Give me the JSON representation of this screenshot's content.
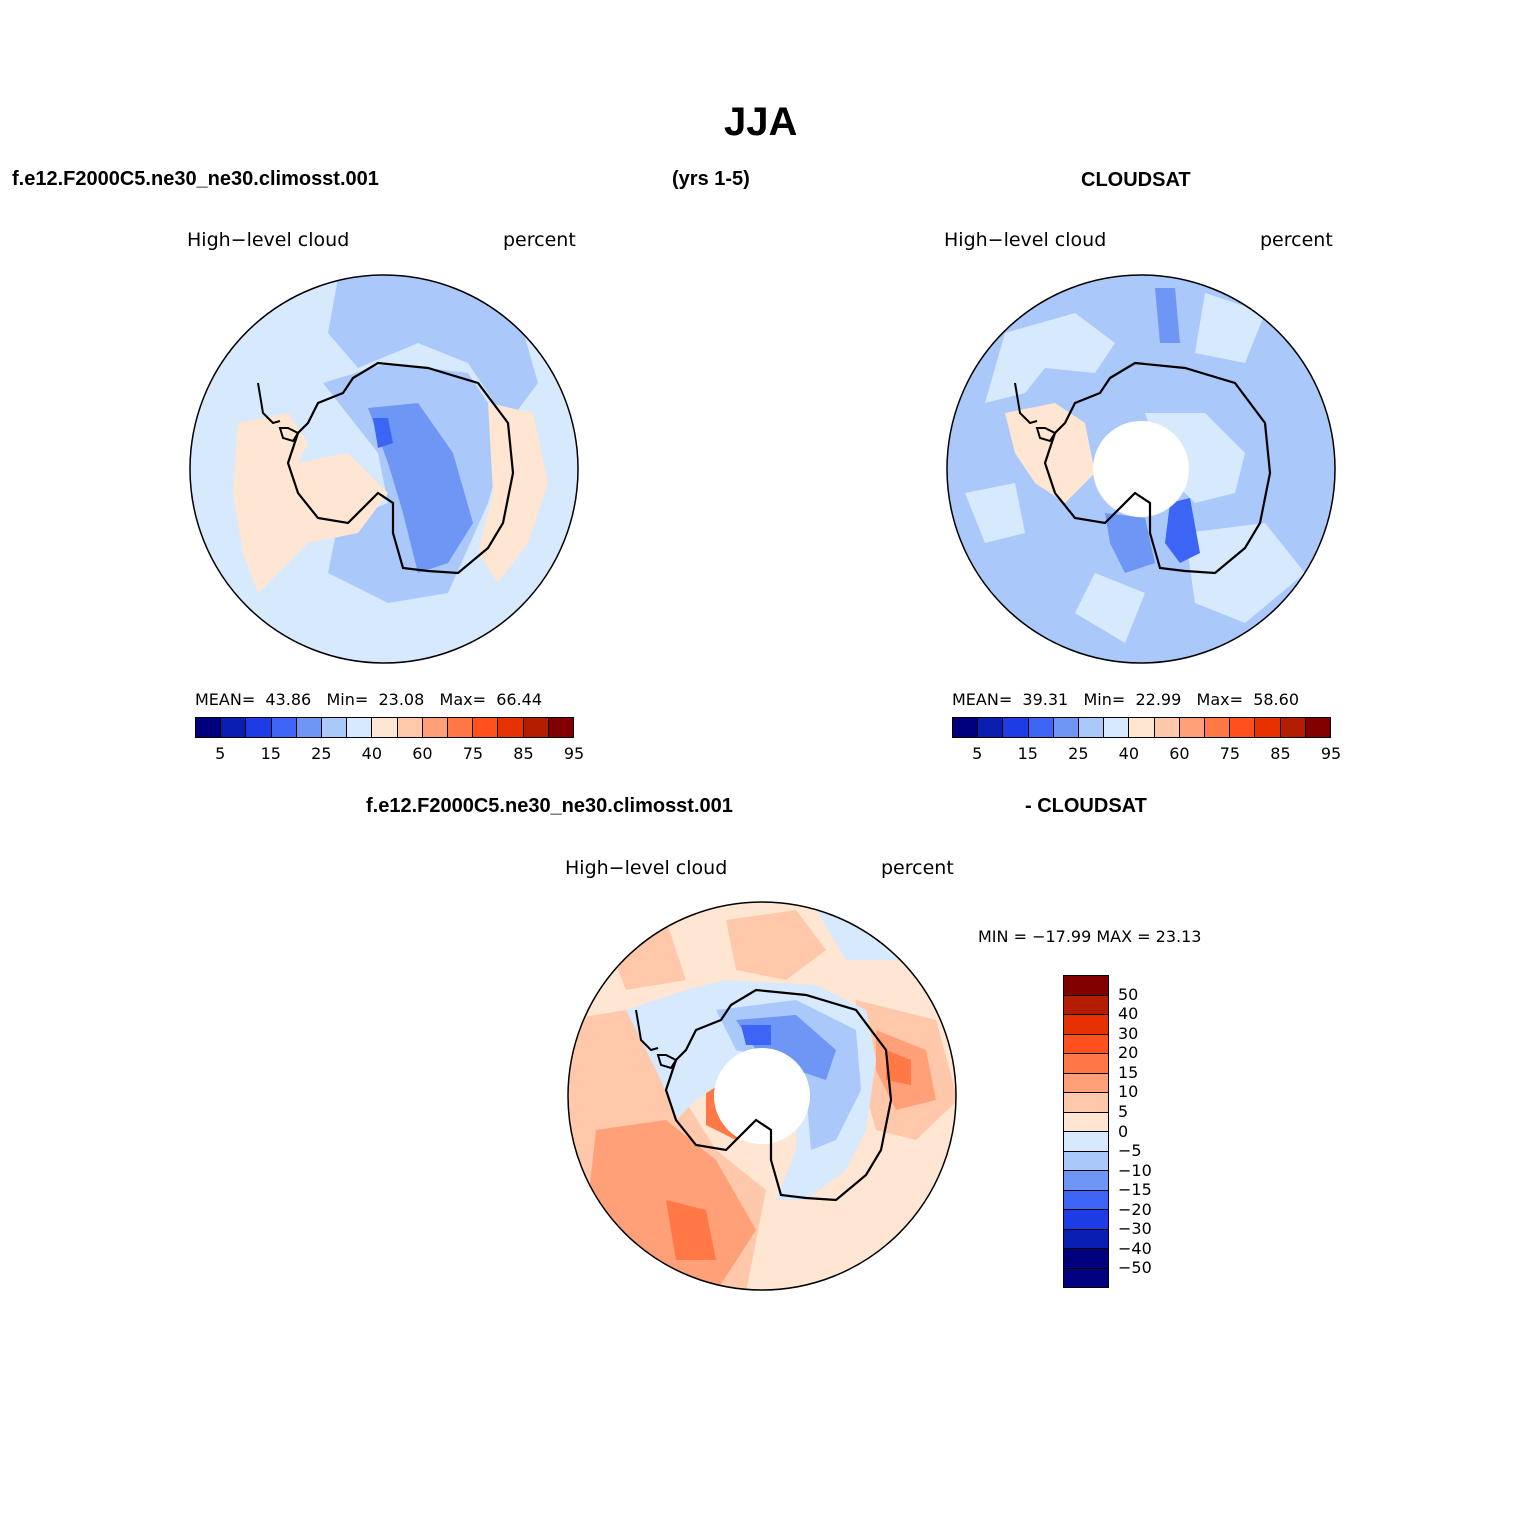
{
  "title": "JJA",
  "panel1": {
    "case_name": "f.e12.F2000C5.ne30_ne30.climosst.001",
    "years": "(yrs 1-5)",
    "variable": "High−level cloud",
    "units": "percent",
    "mean_label": "MEAN=",
    "mean": "43.86",
    "min_label": "Min=",
    "min": "23.08",
    "max_label": "Max=",
    "max": "66.44"
  },
  "panel2": {
    "case_name": "CLOUDSAT",
    "variable": "High−level cloud",
    "units": "percent",
    "mean_label": "MEAN=",
    "mean": "39.31",
    "min_label": "Min=",
    "min": "22.99",
    "max_label": "Max=",
    "max": "58.60"
  },
  "panel3": {
    "case_name": "f.e12.F2000C5.ne30_ne30.climosst.001",
    "diff_label": "- CLOUDSAT",
    "variable": "High−level cloud",
    "units": "percent",
    "minmax": "MIN = −17.99 MAX =  23.13"
  },
  "colorbar_abs": {
    "colors": [
      "#00007f",
      "#0a1eaf",
      "#1e3ce6",
      "#3c64f5",
      "#6e96f5",
      "#aac8fa",
      "#d7e9fd",
      "#ffe6d2",
      "#ffc8aa",
      "#ffa078",
      "#ff7846",
      "#ff501e",
      "#e63200",
      "#b41e00",
      "#820000"
    ],
    "tick_labels": [
      "5",
      "15",
      "25",
      "40",
      "60",
      "75",
      "85",
      "95"
    ]
  },
  "colorbar_diff": {
    "colors": [
      "#820000",
      "#b41e00",
      "#e63200",
      "#ff501e",
      "#ff7846",
      "#ffa078",
      "#ffc8aa",
      "#ffe6d2",
      "#d7e9fd",
      "#aac8fa",
      "#6e96f5",
      "#3c64f5",
      "#1e3ce6",
      "#0a1eaf",
      "#00007f",
      "#000080"
    ],
    "tick_labels": [
      "50",
      "40",
      "30",
      "20",
      "15",
      "10",
      "5",
      "0",
      "−5",
      "−10",
      "−15",
      "−20",
      "−30",
      "−40",
      "−50"
    ]
  }
}
